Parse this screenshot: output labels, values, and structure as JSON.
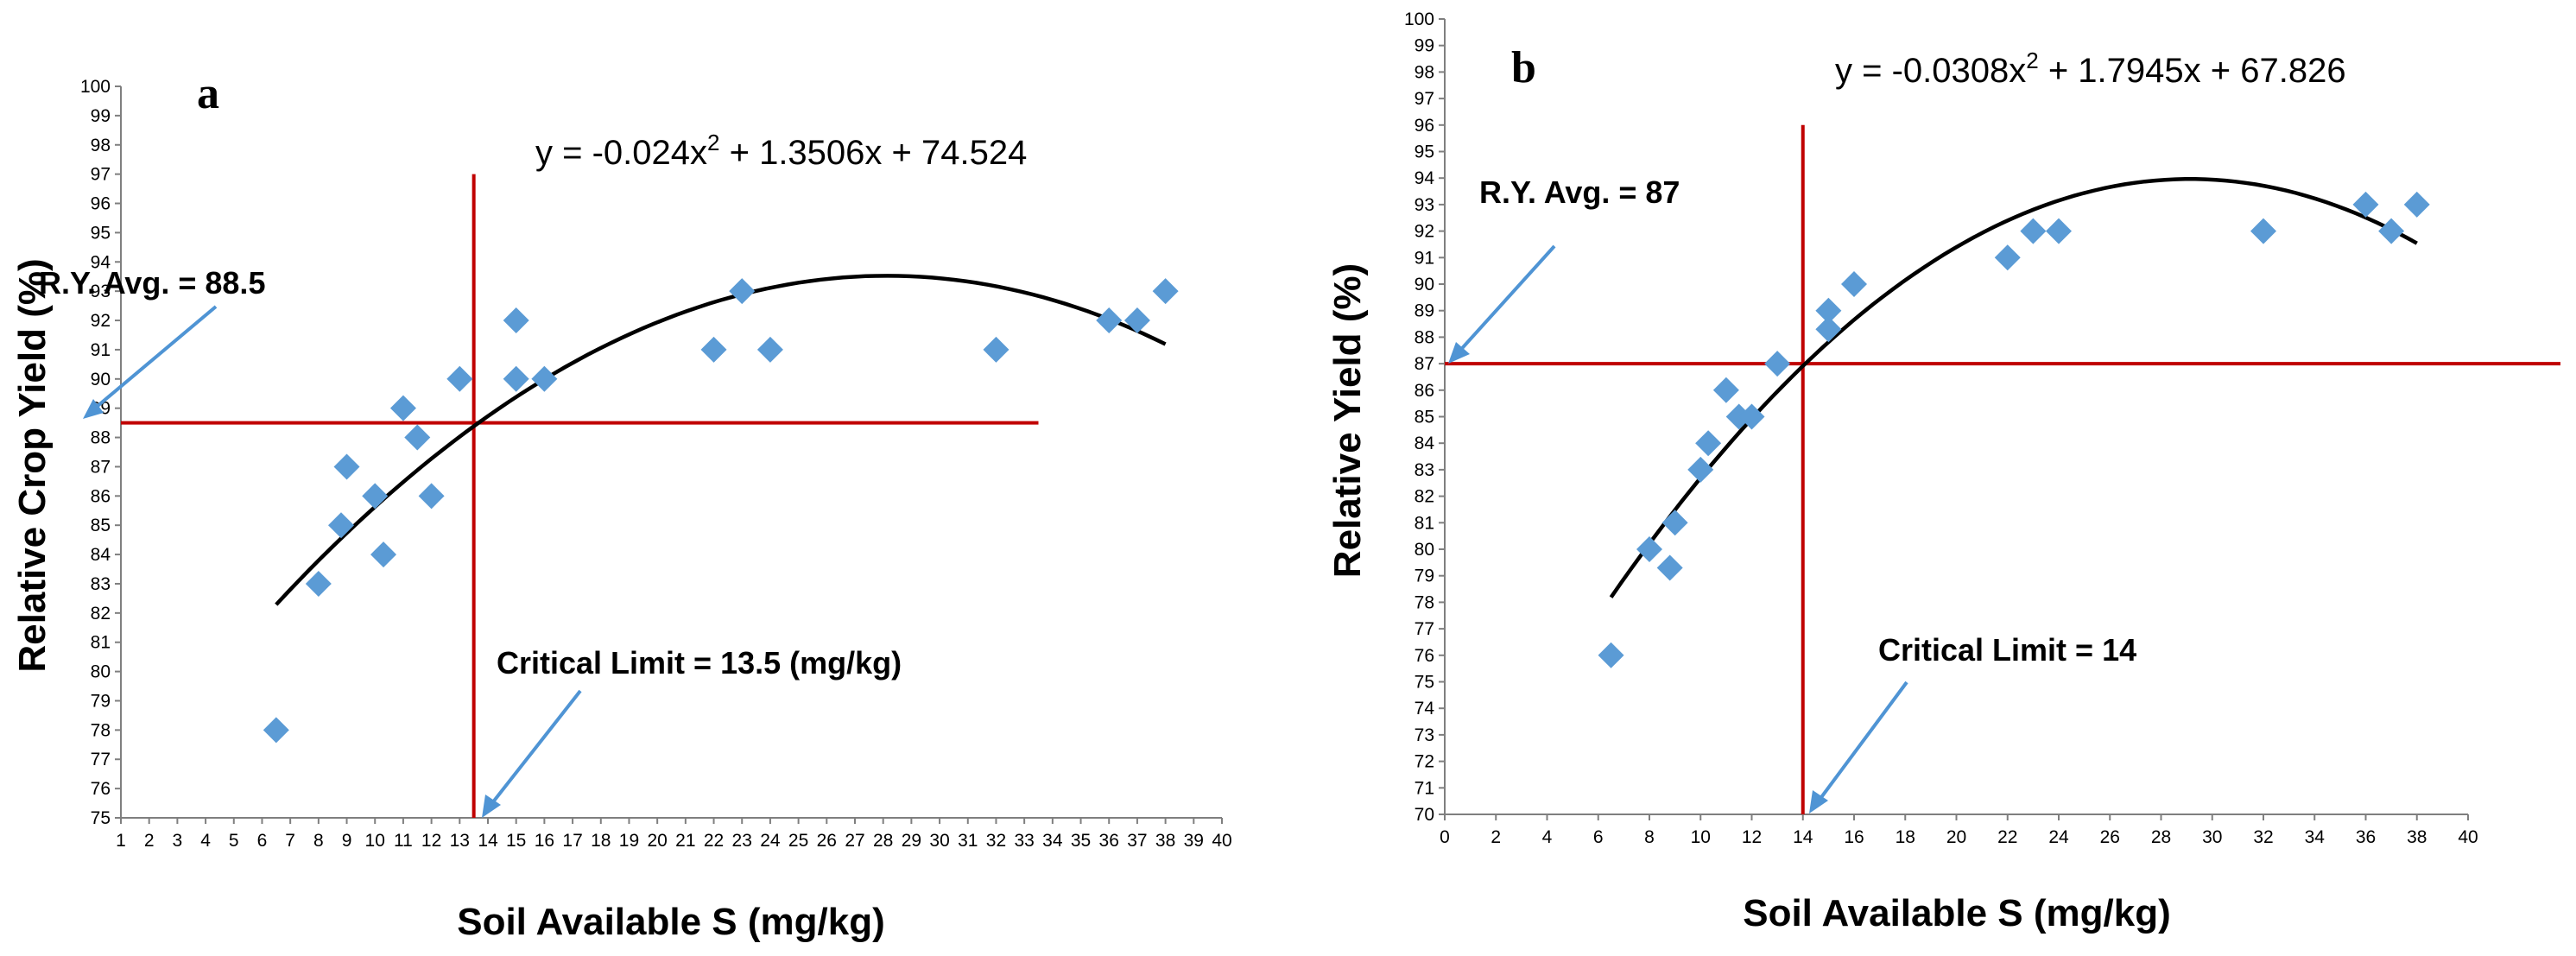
{
  "chart_data": [
    {
      "panel": "a",
      "type": "scatter",
      "equation_text": "y = -0.024x",
      "equation_sup": "2",
      "equation_rest": " + 1.3506x + 74.524",
      "fit": {
        "a": -0.024,
        "b": 1.3506,
        "c": 74.524,
        "x_from": 6.5,
        "x_to": 38
      },
      "xlabel": "Soil Available S (mg/kg)",
      "ylabel": "Relative Crop Yield (%)",
      "xlim": [
        1,
        40
      ],
      "ylim": [
        75,
        100
      ],
      "x_ticks": [
        "1",
        "2",
        "3",
        "4",
        "5",
        "6",
        "7",
        "8",
        "9",
        "10",
        "11",
        "12",
        "13",
        "14",
        "15",
        "16",
        "17",
        "18",
        "19",
        "20",
        "21",
        "22",
        "23",
        "24",
        "25",
        "26",
        "27",
        "28",
        "29",
        "30",
        "31",
        "32",
        "33",
        "34",
        "35",
        "36",
        "37",
        "38",
        "39",
        "40"
      ],
      "y_ticks": [
        "75",
        "76",
        "77",
        "78",
        "79",
        "80",
        "81",
        "82",
        "83",
        "84",
        "85",
        "86",
        "87",
        "88",
        "89",
        "90",
        "91",
        "92",
        "93",
        "94",
        "95",
        "96",
        "97",
        "98",
        "99",
        "100"
      ],
      "points": [
        [
          6.5,
          78
        ],
        [
          8,
          83
        ],
        [
          8.8,
          85
        ],
        [
          9,
          87
        ],
        [
          10,
          86
        ],
        [
          10.3,
          84
        ],
        [
          11,
          89
        ],
        [
          11.5,
          88
        ],
        [
          12,
          86
        ],
        [
          13,
          90
        ],
        [
          15,
          92
        ],
        [
          15,
          90
        ],
        [
          16,
          90
        ],
        [
          22,
          91
        ],
        [
          23,
          93
        ],
        [
          24,
          91
        ],
        [
          32,
          91
        ],
        [
          36,
          92
        ],
        [
          37,
          92
        ],
        [
          38,
          93
        ]
      ],
      "ref_y": 88.5,
      "ref_y_to": 33.5,
      "ref_x": 13.5,
      "ref_x_top": 97,
      "ry_avg_label": "R.Y. Avg. = 88.5",
      "critical_label": "Critical Limit = 13.5 (mg/kg)",
      "grid": false
    },
    {
      "panel": "b",
      "type": "scatter",
      "equation_text": "y = -0.0308x",
      "equation_sup": "2",
      "equation_rest": "  + 1.7945x + 67.826",
      "fit": {
        "a": -0.0308,
        "b": 1.7945,
        "c": 67.826,
        "x_from": 6.5,
        "x_to": 38
      },
      "xlabel": "Soil Available S (mg/kg)",
      "ylabel": "Relative Yield (%)",
      "xlim": [
        0,
        40
      ],
      "ylim": [
        70,
        100
      ],
      "x_ticks": [
        "0",
        "2",
        "4",
        "6",
        "8",
        "10",
        "12",
        "14",
        "16",
        "18",
        "20",
        "22",
        "24",
        "26",
        "28",
        "30",
        "32",
        "34",
        "36",
        "38",
        "40"
      ],
      "y_ticks": [
        "70",
        "71",
        "72",
        "73",
        "74",
        "75",
        "76",
        "77",
        "78",
        "79",
        "80",
        "81",
        "82",
        "83",
        "84",
        "85",
        "86",
        "87",
        "88",
        "89",
        "90",
        "91",
        "92",
        "93",
        "94",
        "95",
        "96",
        "97",
        "98",
        "99",
        "100"
      ],
      "points": [
        [
          6.5,
          76
        ],
        [
          8,
          80
        ],
        [
          8.8,
          79.3
        ],
        [
          9,
          81
        ],
        [
          10,
          83
        ],
        [
          10.3,
          84
        ],
        [
          11,
          86
        ],
        [
          11.5,
          85
        ],
        [
          12,
          85
        ],
        [
          13,
          87
        ],
        [
          15,
          89
        ],
        [
          15,
          88.3
        ],
        [
          16,
          90
        ],
        [
          22,
          91
        ],
        [
          23,
          92
        ],
        [
          24,
          92
        ],
        [
          32,
          92
        ],
        [
          36,
          93
        ],
        [
          37,
          92
        ],
        [
          38,
          93
        ]
      ],
      "ref_y": 87,
      "ref_y_to": 44,
      "ref_x": 14,
      "ref_x_top": 96,
      "ry_avg_label": "R.Y. Avg. = 87",
      "critical_label": "Critical Limit = 14",
      "grid": false
    }
  ]
}
